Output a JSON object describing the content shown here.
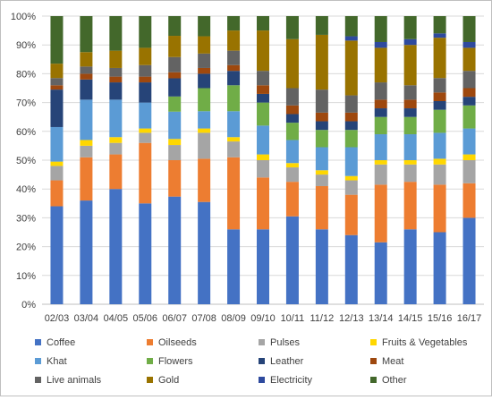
{
  "chart_data": {
    "type": "bar",
    "stacked": true,
    "percent": true,
    "categories": [
      "02/03",
      "03/04",
      "04/05",
      "05/06",
      "06/07",
      "07/08",
      "08/09",
      "09/10",
      "10/11",
      "11/12",
      "12/13",
      "13/14",
      "14/15",
      "15/16",
      "16/17"
    ],
    "y_ticks": [
      "0%",
      "10%",
      "20%",
      "30%",
      "40%",
      "50%",
      "60%",
      "70%",
      "80%",
      "90%",
      "100%"
    ],
    "ylim": [
      0,
      100
    ],
    "grid": true,
    "legend_position": "bottom",
    "series": [
      {
        "name": "Coffee",
        "color": "#4472C4",
        "values": [
          34,
          36,
          40,
          35,
          35.5,
          35.5,
          26,
          26,
          30.5,
          26,
          24,
          21.5,
          26,
          25,
          30
        ]
      },
      {
        "name": "Oilseeds",
        "color": "#ED7D31",
        "values": [
          9,
          15,
          12,
          21,
          12,
          15,
          25,
          18,
          12,
          15,
          14,
          20,
          16.5,
          16.5,
          12
        ]
      },
      {
        "name": "Pulses",
        "color": "#A5A5A5",
        "values": [
          5,
          4,
          4,
          3.5,
          5,
          9,
          5.5,
          6,
          5,
          4,
          5,
          7,
          6,
          7,
          8
        ]
      },
      {
        "name": "Fruits & Vegetables",
        "color": "#FFD700",
        "values": [
          1.5,
          2,
          2,
          1.5,
          2,
          1.5,
          1.5,
          2,
          1.5,
          1.5,
          1.5,
          1.5,
          1.5,
          2,
          2
        ]
      },
      {
        "name": "Khat",
        "color": "#5B9BD5",
        "values": [
          12,
          14,
          13,
          9,
          9,
          6,
          9,
          10,
          8,
          8,
          10,
          9,
          9,
          9,
          9
        ]
      },
      {
        "name": "Flowers",
        "color": "#70AD47",
        "values": [
          0,
          0,
          0,
          0,
          5,
          8,
          9,
          8,
          6,
          6,
          6,
          6,
          6,
          8,
          8
        ]
      },
      {
        "name": "Leather",
        "color": "#264478",
        "values": [
          13,
          7,
          6,
          7,
          6,
          5,
          5,
          3,
          3,
          3,
          3,
          3,
          3,
          3,
          3
        ]
      },
      {
        "name": "Meat",
        "color": "#9E480E",
        "values": [
          1.5,
          2,
          2,
          2,
          2,
          2,
          2,
          3,
          3,
          3,
          3,
          3,
          3,
          3,
          3
        ]
      },
      {
        "name": "Live animals",
        "color": "#636363",
        "values": [
          2.5,
          2.5,
          3,
          4,
          5,
          5,
          5,
          5,
          6,
          8,
          6,
          6,
          5,
          5,
          6
        ]
      },
      {
        "name": "Gold",
        "color": "#997300",
        "values": [
          5,
          5,
          6,
          6,
          7,
          6,
          7,
          14,
          17,
          19,
          19,
          12,
          14,
          14,
          8
        ]
      },
      {
        "name": "Electricity",
        "color": "#2E4A9E",
        "values": [
          0,
          0,
          0,
          0,
          0,
          0,
          0,
          0,
          0,
          0,
          1.5,
          2,
          2,
          1.5,
          2
        ]
      },
      {
        "name": "Other",
        "color": "#43682B",
        "values": [
          16.5,
          12.5,
          12,
          11,
          6.5,
          7,
          5,
          5,
          8,
          6.5,
          7,
          9,
          8,
          6,
          9
        ]
      }
    ]
  }
}
